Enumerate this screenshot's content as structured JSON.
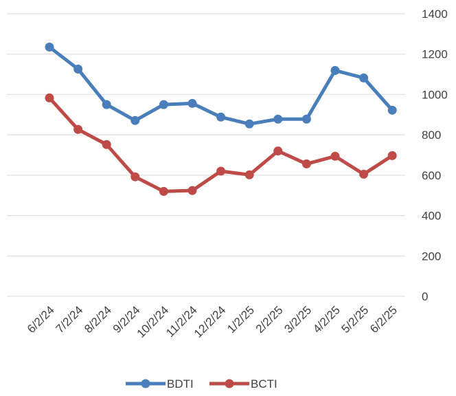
{
  "chart_data": {
    "type": "line",
    "categories": [
      "6/2/24",
      "7/2/24",
      "8/2/24",
      "9/2/24",
      "10/2/24",
      "11/2/24",
      "12/2/24",
      "1/2/25",
      "2/2/25",
      "3/2/25",
      "4/2/25",
      "5/2/25",
      "6/2/25"
    ],
    "series": [
      {
        "name": "BDTI",
        "color": "#4a7ebb",
        "values": [
          1235,
          1126,
          950,
          871,
          950,
          956,
          888,
          854,
          878,
          878,
          1119,
          1082,
          922
        ]
      },
      {
        "name": "BCTI",
        "color": "#be4b48",
        "values": [
          983,
          827,
          752,
          592,
          520,
          524,
          620,
          602,
          720,
          656,
          694,
          605,
          697
        ]
      }
    ],
    "ylim": [
      0,
      1400
    ],
    "yticks": [
      0,
      200,
      400,
      600,
      800,
      1000,
      1200,
      1400
    ],
    "grid": true,
    "legend": "bottom"
  }
}
